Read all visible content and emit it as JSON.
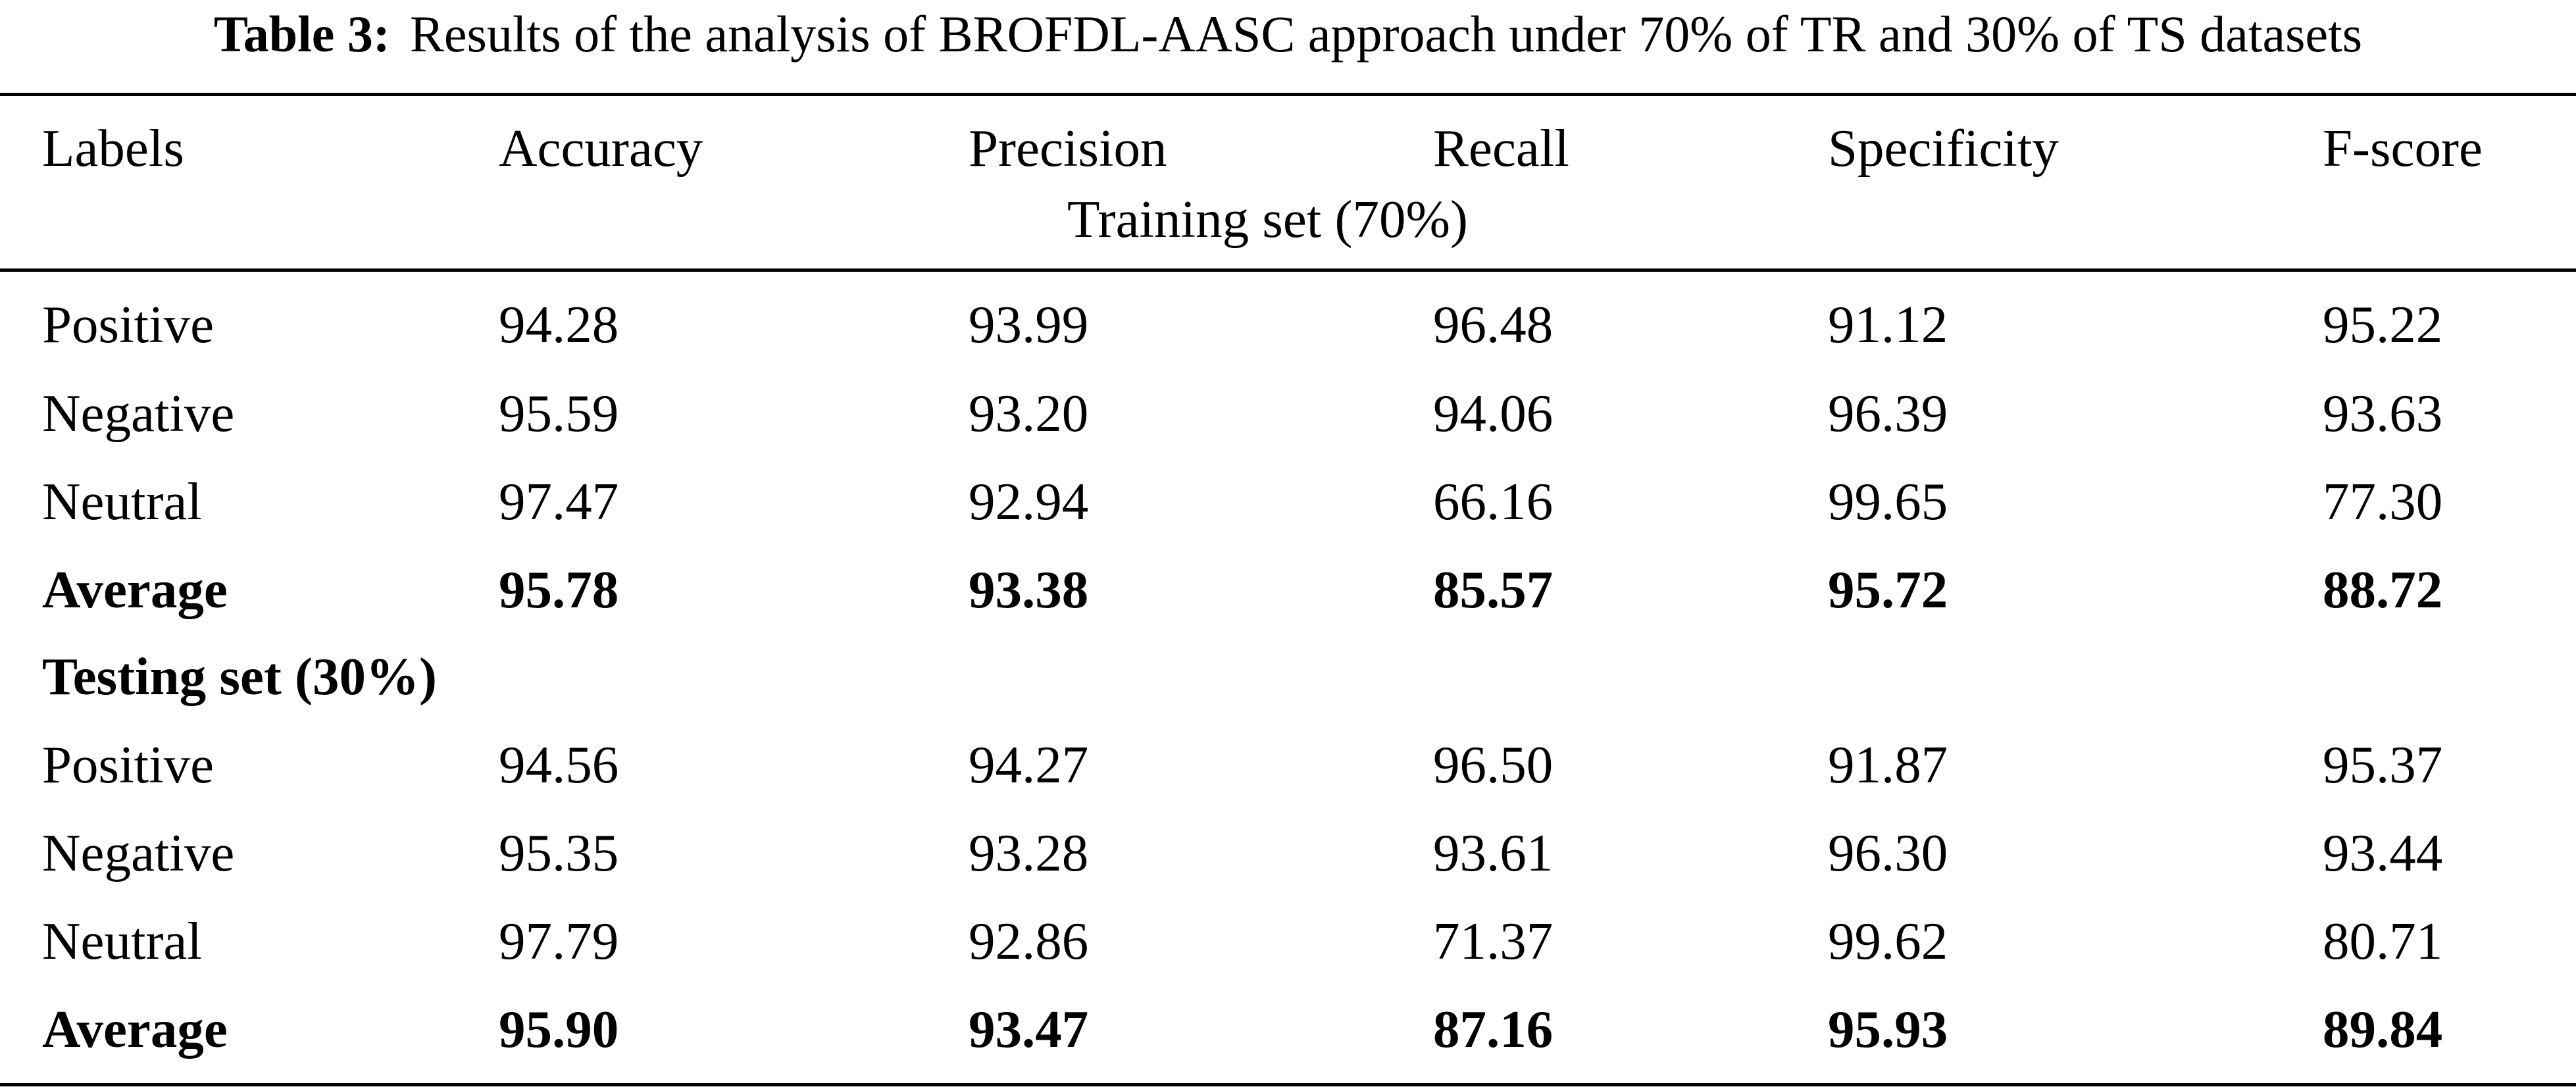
{
  "caption": {
    "label": "Table 3:",
    "text": "Results of the analysis of BROFDL-AASC approach under 70% of TR and 30% of TS datasets"
  },
  "columns": [
    "Labels",
    "Accuracy",
    "Precision",
    "Recall",
    "Specificity",
    "F-score"
  ],
  "training_header": "Training set (70%)",
  "training_rows": [
    [
      "Positive",
      "94.28",
      "93.99",
      "96.48",
      "91.12",
      "95.22"
    ],
    [
      "Negative",
      "95.59",
      "93.20",
      "94.06",
      "96.39",
      "93.63"
    ],
    [
      "Neutral",
      "97.47",
      "92.94",
      "66.16",
      "99.65",
      "77.30"
    ],
    [
      "Average",
      "95.78",
      "93.38",
      "85.57",
      "95.72",
      "88.72"
    ]
  ],
  "testing_header": "Testing set (30%)",
  "testing_rows": [
    [
      "Positive",
      "94.56",
      "94.27",
      "96.50",
      "91.87",
      "95.37"
    ],
    [
      "Negative",
      "95.35",
      "93.28",
      "93.61",
      "96.30",
      "93.44"
    ],
    [
      "Neutral",
      "97.79",
      "92.86",
      "71.37",
      "99.62",
      "80.71"
    ],
    [
      "Average",
      "95.90",
      "93.47",
      "87.16",
      "95.93",
      "89.84"
    ]
  ]
}
